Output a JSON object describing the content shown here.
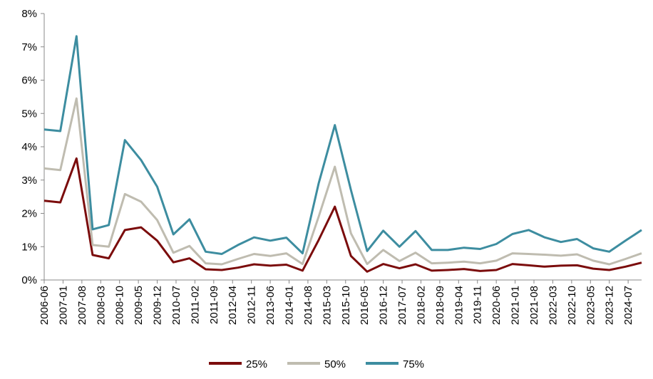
{
  "chart_data": {
    "type": "line",
    "x": [
      "2006-06",
      "2006-12",
      "2007-06",
      "2007-12",
      "2008-06",
      "2008-12",
      "2009-06",
      "2009-12",
      "2010-06",
      "2010-12",
      "2011-06",
      "2011-12",
      "2012-06",
      "2012-12",
      "2013-06",
      "2013-12",
      "2014-06",
      "2014-12",
      "2015-06",
      "2015-12",
      "2016-06",
      "2016-12",
      "2017-06",
      "2017-12",
      "2018-06",
      "2018-12",
      "2019-06",
      "2019-12",
      "2020-06",
      "2020-12",
      "2021-06",
      "2021-12",
      "2022-06",
      "2022-12",
      "2023-06",
      "2023-12",
      "2024-06",
      "2024-12"
    ],
    "xlim": [
      "2006-06",
      "2024-12"
    ],
    "xticks": [
      "2006-06",
      "2007-01",
      "2007-08",
      "2008-03",
      "2008-10",
      "2009-05",
      "2009-12",
      "2010-07",
      "2011-02",
      "2011-09",
      "2012-04",
      "2012-11",
      "2013-06",
      "2014-01",
      "2014-08",
      "2015-03",
      "2015-10",
      "2016-05",
      "2016-12",
      "2017-07",
      "2018-02",
      "2018-09",
      "2019-04",
      "2019-11",
      "2020-06",
      "2021-01",
      "2021-08",
      "2022-03",
      "2022-10",
      "2023-05",
      "2023-12",
      "2024-07"
    ],
    "ylim": [
      0,
      8
    ],
    "yticks": [
      {
        "value": 0,
        "label": "0%"
      },
      {
        "value": 1,
        "label": "1%"
      },
      {
        "value": 2,
        "label": "2%"
      },
      {
        "value": 3,
        "label": "3%"
      },
      {
        "value": 4,
        "label": "4%"
      },
      {
        "value": 5,
        "label": "5%"
      },
      {
        "value": 6,
        "label": "6%"
      },
      {
        "value": 7,
        "label": "7%"
      },
      {
        "value": 8,
        "label": "8%"
      }
    ],
    "grid": false,
    "legend": "bottom",
    "series": [
      {
        "name": "25%",
        "color": "#7b0c0c",
        "values": [
          2.38,
          2.33,
          3.65,
          0.75,
          0.65,
          1.5,
          1.58,
          1.18,
          0.53,
          0.65,
          0.32,
          0.3,
          0.37,
          0.47,
          0.43,
          0.46,
          0.28,
          1.2,
          2.2,
          0.72,
          0.25,
          0.48,
          0.35,
          0.47,
          0.28,
          0.3,
          0.33,
          0.27,
          0.3,
          0.48,
          0.44,
          0.4,
          0.43,
          0.44,
          0.34,
          0.3,
          0.4,
          0.52
        ]
      },
      {
        "name": "50%",
        "color": "#bfbcb0",
        "values": [
          3.35,
          3.3,
          5.45,
          1.05,
          1.0,
          2.58,
          2.35,
          1.8,
          0.82,
          1.02,
          0.5,
          0.47,
          0.63,
          0.78,
          0.72,
          0.8,
          0.48,
          1.9,
          3.4,
          1.4,
          0.48,
          0.9,
          0.57,
          0.82,
          0.5,
          0.52,
          0.55,
          0.5,
          0.58,
          0.8,
          0.78,
          0.76,
          0.73,
          0.77,
          0.58,
          0.47,
          0.63,
          0.8
        ]
      },
      {
        "name": "75%",
        "color": "#3d8da0",
        "values": [
          4.52,
          4.47,
          7.32,
          1.52,
          1.65,
          4.2,
          3.6,
          2.8,
          1.37,
          1.82,
          0.85,
          0.78,
          1.05,
          1.28,
          1.18,
          1.27,
          0.8,
          2.9,
          4.65,
          2.7,
          0.87,
          1.48,
          1.0,
          1.47,
          0.9,
          0.9,
          0.97,
          0.93,
          1.08,
          1.38,
          1.5,
          1.28,
          1.14,
          1.23,
          0.95,
          0.85,
          1.18,
          1.5
        ]
      }
    ]
  }
}
